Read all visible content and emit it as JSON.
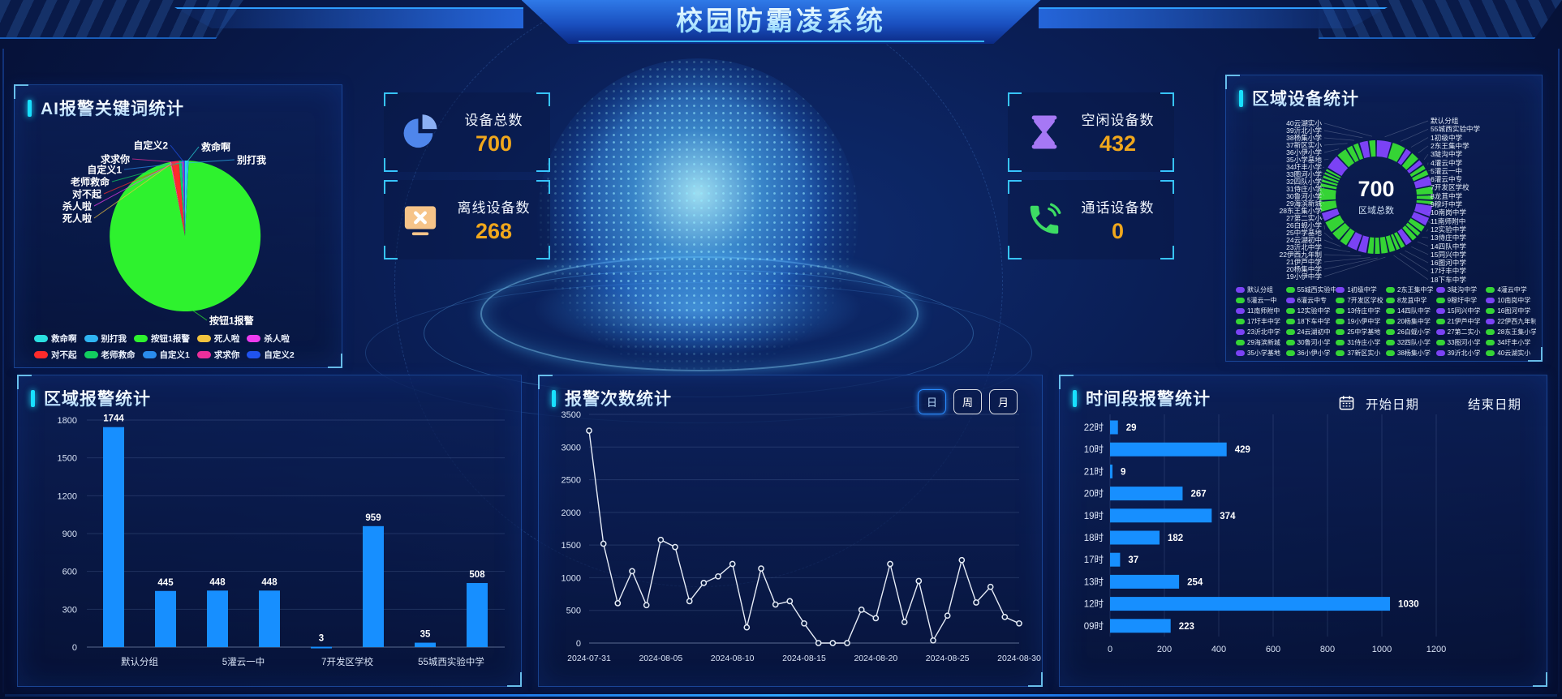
{
  "header": {
    "title": "校园防霸凌系统"
  },
  "stat_cards": [
    {
      "label": "设备总数",
      "value": "700",
      "icon": "pie-chart-icon"
    },
    {
      "label": "离线设备数",
      "value": "268",
      "icon": "monitor-offline-icon"
    },
    {
      "label": "空闲设备数",
      "value": "432",
      "icon": "hourglass-icon"
    },
    {
      "label": "通话设备数",
      "value": "0",
      "icon": "phone-icon"
    }
  ],
  "keyword_panel": {
    "title": "AI报警关键词统计"
  },
  "region_device_panel": {
    "title": "区域设备统计",
    "center_value": "700",
    "center_label": "区域总数"
  },
  "region_alarm_panel": {
    "title": "区域报警统计"
  },
  "alarm_count_panel": {
    "title": "报警次数统计",
    "range_buttons": [
      "日",
      "周",
      "月"
    ],
    "active_button": "日"
  },
  "time_alarm_panel": {
    "title": "时间段报警统计",
    "start_date_label": "开始日期",
    "end_date_label": "结束日期"
  },
  "chart_data": [
    {
      "id": "keyword-pie",
      "type": "pie",
      "title": "AI报警关键词统计",
      "note": "slice sizes estimated from pixels, percent of whole",
      "series": [
        {
          "name": "救命啊",
          "value": 0.5,
          "color": "#2adfe0"
        },
        {
          "name": "别打我",
          "value": 0.3,
          "color": "#2fb4f2"
        },
        {
          "name": "按钮1报警",
          "value": 96.0,
          "color": "#2ef22e"
        },
        {
          "name": "死人啦",
          "value": 0.15,
          "color": "#f2c33e"
        },
        {
          "name": "杀人啦",
          "value": 0.15,
          "color": "#ee3cee"
        },
        {
          "name": "对不起",
          "value": 1.6,
          "color": "#ff2b2b"
        },
        {
          "name": "老师救命",
          "value": 0.55,
          "color": "#12cf5f"
        },
        {
          "name": "自定义1",
          "value": 0.25,
          "color": "#2a8ced"
        },
        {
          "name": "求求你",
          "value": 0.25,
          "color": "#ea2f9c"
        },
        {
          "name": "自定义2",
          "value": 0.25,
          "color": "#2053ef"
        }
      ]
    },
    {
      "id": "region-donut",
      "type": "donut",
      "title": "区域设备统计",
      "total": 700,
      "center_label": "区域总数",
      "note": "per-region values estimated from arc lengths, sum = 700",
      "series": [
        {
          "name": "默认分组",
          "value": 35,
          "color": "#7b42f5"
        },
        {
          "name": "55城西实验中学",
          "value": 32,
          "color": "#35d435"
        },
        {
          "name": "1初级中学",
          "value": 14,
          "color": "#7b42f5"
        },
        {
          "name": "2东王集中学",
          "value": 20,
          "color": "#35d435"
        },
        {
          "name": "3陡沟中学",
          "value": 12,
          "color": "#7b42f5"
        },
        {
          "name": "4灌云中学",
          "value": 10,
          "color": "#35d435"
        },
        {
          "name": "5灌云一中",
          "value": 12,
          "color": "#35d435"
        },
        {
          "name": "6灌云中专",
          "value": 22,
          "color": "#7b42f5"
        },
        {
          "name": "7开发区学校",
          "value": 18,
          "color": "#35d435"
        },
        {
          "name": "8龙苴中学",
          "value": 10,
          "color": "#35d435"
        },
        {
          "name": "9穆圩中学",
          "value": 8,
          "color": "#35d435"
        },
        {
          "name": "10南岗中学",
          "value": 26,
          "color": "#7b42f5"
        },
        {
          "name": "11南师附中",
          "value": 20,
          "color": "#7b42f5"
        },
        {
          "name": "12实验中学",
          "value": 14,
          "color": "#35d435"
        },
        {
          "name": "13侍庄中学",
          "value": 10,
          "color": "#35d435"
        },
        {
          "name": "14四队中学",
          "value": 12,
          "color": "#35d435"
        },
        {
          "name": "15同兴中学",
          "value": 16,
          "color": "#7b42f5"
        },
        {
          "name": "16图河中学",
          "value": 10,
          "color": "#35d435"
        },
        {
          "name": "17圩丰中学",
          "value": 8,
          "color": "#35d435"
        },
        {
          "name": "18下车中学",
          "value": 14,
          "color": "#35d435"
        },
        {
          "name": "19小伊中学",
          "value": 16,
          "color": "#35d435"
        },
        {
          "name": "20杨集中学",
          "value": 12,
          "color": "#35d435"
        },
        {
          "name": "21伊芦中学",
          "value": 14,
          "color": "#35d435"
        },
        {
          "name": "22伊西九年制",
          "value": 20,
          "color": "#7b42f5"
        },
        {
          "name": "23沂北中学",
          "value": 24,
          "color": "#7b42f5"
        },
        {
          "name": "24云湖初中",
          "value": 18,
          "color": "#35d435"
        },
        {
          "name": "25中学基地",
          "value": 22,
          "color": "#35d435"
        },
        {
          "name": "26白蚬小学",
          "value": 28,
          "color": "#35d435"
        },
        {
          "name": "27第二实小",
          "value": 20,
          "color": "#7b42f5"
        },
        {
          "name": "28东王集小学",
          "value": 24,
          "color": "#35d435"
        },
        {
          "name": "29海滨新城",
          "value": 30,
          "color": "#35d435"
        },
        {
          "name": "30鲁河小学",
          "value": 8,
          "color": "#35d435"
        },
        {
          "name": "31侍庄小学",
          "value": 6,
          "color": "#35d435"
        },
        {
          "name": "32四队小学",
          "value": 6,
          "color": "#35d435"
        },
        {
          "name": "33图河小学",
          "value": 5,
          "color": "#35d435"
        },
        {
          "name": "34圩丰小学",
          "value": 5,
          "color": "#35d435"
        },
        {
          "name": "35小学基地",
          "value": 34,
          "color": "#7b42f5"
        },
        {
          "name": "36小伊小学",
          "value": 24,
          "color": "#35d435"
        },
        {
          "name": "37新区实小",
          "value": 14,
          "color": "#35d435"
        },
        {
          "name": "38杨集小学",
          "value": 12,
          "color": "#35d435"
        },
        {
          "name": "39沂北小学",
          "value": 20,
          "color": "#7b42f5"
        },
        {
          "name": "40云湖实小",
          "value": 15,
          "color": "#35d435"
        }
      ]
    },
    {
      "id": "region-bar",
      "type": "bar",
      "title": "区域报警统计",
      "categories": [
        "默认分组",
        "5灌云一中",
        "7开发区学校",
        "55城西实验中学"
      ],
      "bars_per_category": 2,
      "values": [
        1744,
        445,
        448,
        448,
        3,
        959,
        35,
        508
      ],
      "ylim": [
        0,
        1800
      ],
      "ytick_step": 300,
      "bar_color": "#178fff"
    },
    {
      "id": "alarm-line",
      "type": "line",
      "title": "报警次数统计",
      "x_tick_labels": [
        "2024-07-31",
        "2024-08-05",
        "2024-08-10",
        "2024-08-15",
        "2024-08-20",
        "2024-08-25",
        "2024-08-30"
      ],
      "values": [
        3250,
        1520,
        610,
        1100,
        580,
        1580,
        1470,
        640,
        920,
        1020,
        1210,
        240,
        1140,
        590,
        640,
        300,
        0,
        0,
        0,
        510,
        380,
        1210,
        320,
        950,
        40,
        420,
        1270,
        620,
        860,
        400,
        300
      ],
      "ylim": [
        0,
        3500
      ],
      "ytick_step": 500,
      "line_color": "#e6ecf7"
    },
    {
      "id": "hour-bar",
      "type": "horizontal-bar",
      "title": "时间段报警统计",
      "categories": [
        "22时",
        "10时",
        "21时",
        "20时",
        "19时",
        "18时",
        "17时",
        "13时",
        "12时",
        "09时"
      ],
      "values": [
        29,
        429,
        9,
        267,
        374,
        182,
        37,
        254,
        1030,
        223
      ],
      "xlim": [
        0,
        1200
      ],
      "xtick_step": 200,
      "bar_color": "#178fff"
    }
  ]
}
